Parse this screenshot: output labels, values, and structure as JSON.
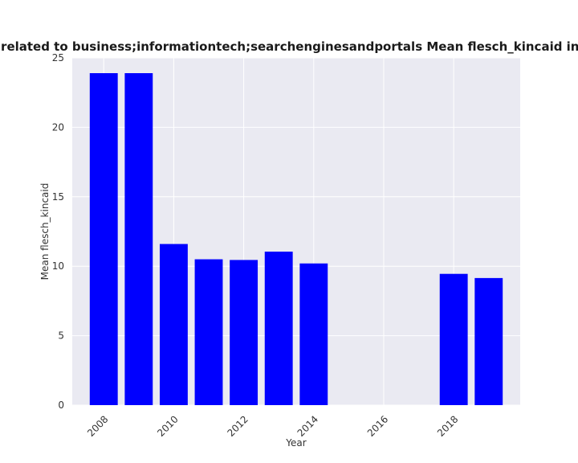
{
  "chart_data": {
    "type": "bar",
    "title": "are related to business;informationtech;searchenginesandportals Mean flesch_kincaid in priva",
    "xlabel": "Year",
    "ylabel": "Mean flesch_kincaid",
    "x": [
      2008,
      2009,
      2010,
      2011,
      2012,
      2013,
      2014,
      2018,
      2019
    ],
    "values": [
      23.9,
      23.9,
      11.6,
      10.5,
      10.45,
      11.05,
      10.2,
      9.45,
      9.15
    ],
    "xlim": [
      2007.1,
      2019.9
    ],
    "ylim": [
      0,
      25
    ],
    "xticks": [
      2008,
      2010,
      2012,
      2014,
      2016,
      2018
    ],
    "yticks": [
      0,
      5,
      10,
      15,
      20,
      25
    ],
    "bar_color": "#0000ff",
    "background_color": "#eaeaf2",
    "grid_color": "#ffffff",
    "grid": true,
    "legend": "none"
  }
}
